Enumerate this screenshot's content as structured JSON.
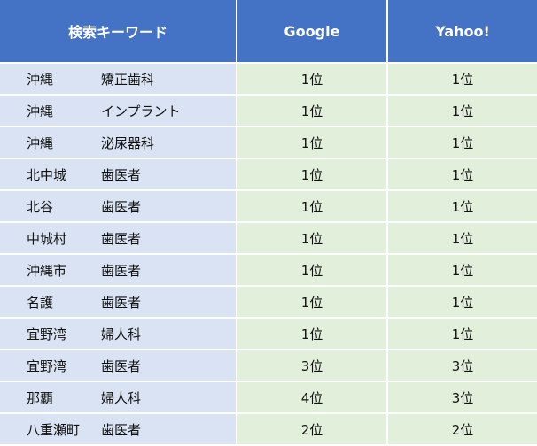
{
  "headers": [
    "検索キーワード",
    "Google",
    "Yahoo!"
  ],
  "rows": [
    {
      "area": "沖縄",
      "term": "矯正歯科",
      "google": "1位",
      "yahoo": "1位"
    },
    {
      "area": "沖縄",
      "term": "インプラント",
      "google": "1位",
      "yahoo": "1位"
    },
    {
      "area": "沖縄",
      "term": "泌尿器科",
      "google": "1位",
      "yahoo": "1位"
    },
    {
      "area": "北中城",
      "term": "歯医者",
      "google": "1位",
      "yahoo": "1位"
    },
    {
      "area": "北谷",
      "term": "歯医者",
      "google": "1位",
      "yahoo": "1位"
    },
    {
      "area": "中城村",
      "term": "歯医者",
      "google": "1位",
      "yahoo": "1位"
    },
    {
      "area": "沖縄市",
      "term": "歯医者",
      "google": "1位",
      "yahoo": "1位"
    },
    {
      "area": "名護",
      "term": "歯医者",
      "google": "1位",
      "yahoo": "1位"
    },
    {
      "area": "宜野湾",
      "term": "婦人科",
      "google": "1位",
      "yahoo": "1位"
    },
    {
      "area": "宜野湾",
      "term": "歯医者",
      "google": "3位",
      "yahoo": "3位"
    },
    {
      "area": "那覇",
      "term": "婦人科",
      "google": "4位",
      "yahoo": "3位"
    },
    {
      "area": "八重瀬町",
      "term": "歯医者",
      "google": "2位",
      "yahoo": "2位"
    }
  ],
  "colors": {
    "header": "#4472c4",
    "keyword_col": "#dae3f3",
    "rank_col": "#e2efda"
  }
}
